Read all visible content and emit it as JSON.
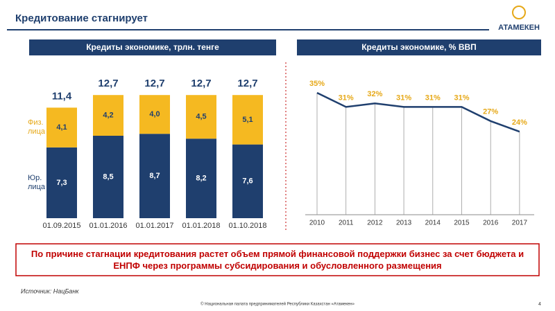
{
  "header": {
    "title": "Кредитование стагнирует",
    "logo": "АТАМЕКЕН"
  },
  "chart_data": [
    {
      "type": "stacked-bar",
      "title": "Кредиты экономике, трлн. тенге",
      "categories": [
        "01.09.2015",
        "01.01.2016",
        "01.01.2017",
        "01.01.2018",
        "01.10.2018"
      ],
      "series": [
        {
          "name": "Юр. лица",
          "color": "#1f3f6e",
          "values": [
            7.3,
            8.5,
            8.7,
            8.2,
            7.6
          ],
          "value_labels": [
            "7,3",
            "8,5",
            "8,7",
            "8,2",
            "7,6"
          ]
        },
        {
          "name": "Физ. лица",
          "color": "#f5b921",
          "values": [
            4.1,
            4.2,
            4.0,
            4.5,
            5.1
          ],
          "value_labels": [
            "4,1",
            "4,2",
            "4,0",
            "4,5",
            "5,1"
          ]
        }
      ],
      "totals": [
        11.4,
        12.7,
        12.7,
        12.7,
        12.7
      ],
      "total_labels": [
        "11,4",
        "12,7",
        "12,7",
        "12,7",
        "12,7"
      ]
    },
    {
      "type": "line",
      "title": "Кредиты экономике, % ВВП",
      "categories": [
        "2010",
        "2011",
        "2012",
        "2013",
        "2014",
        "2015",
        "2016",
        "2017"
      ],
      "values": [
        35,
        31,
        32,
        31,
        31,
        31,
        27,
        24
      ],
      "value_labels": [
        "35%",
        "31%",
        "32%",
        "31%",
        "31%",
        "31%",
        "27%",
        "24%"
      ],
      "color": "#1f3f6e"
    }
  ],
  "banner": "По причине стагнации кредитования растет объем прямой финансовой поддержки бизнес за счет бюджета и ЕНПФ через программы субсидирования и обусловленного размещения",
  "source": "Источник: НацБанк",
  "footer": {
    "copyright": "© Национальная палата предпринимателей Республики Казахстан «Атамекен»",
    "page": "4"
  }
}
